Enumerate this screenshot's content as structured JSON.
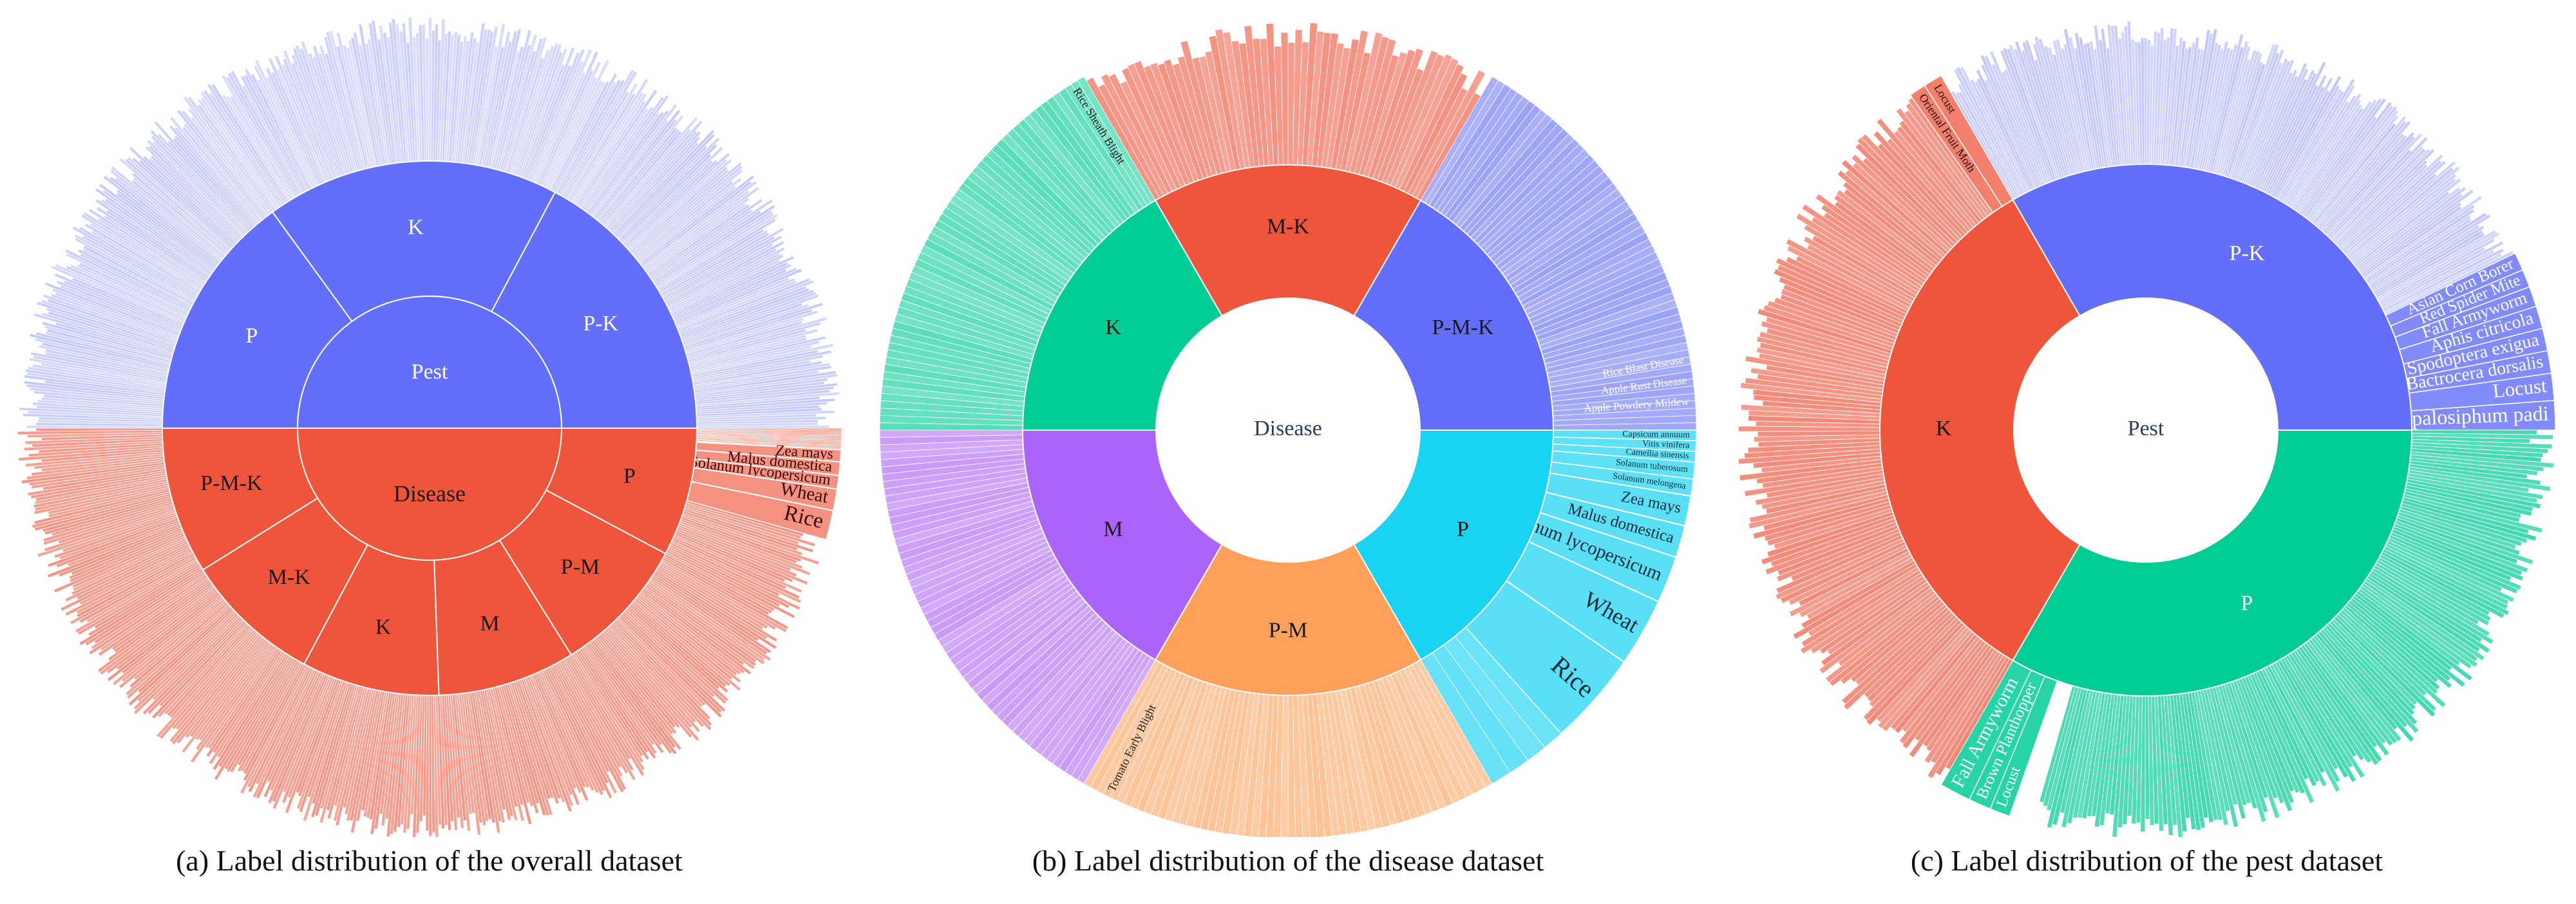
{
  "captions": {
    "a": "(a) Label distribution of the overall dataset",
    "b": "(b) Label distribution of the disease dataset",
    "c": "(c) Label distribution of the pest dataset"
  },
  "colors": {
    "pest_blue": "#636efa",
    "disease_red": "#ef553b",
    "teal": "#00cc96",
    "purple": "#ab63fa",
    "orange": "#ffa15a",
    "cyan": "#19d3f3"
  },
  "chart_data": [
    {
      "type": "sunburst",
      "id": "overall",
      "center_labels": [
        "Pest",
        "Disease"
      ],
      "rings": {
        "inner": [
          {
            "label": "Pest",
            "value": 50,
            "color": "#636efa"
          },
          {
            "label": "Disease",
            "value": 50,
            "color": "#ef553b"
          }
        ],
        "middle": [
          {
            "label": "P-K",
            "parent": "Pest",
            "value": 17,
            "color": "#636efa"
          },
          {
            "label": "K",
            "parent": "Pest",
            "value": 16,
            "color": "#636efa"
          },
          {
            "label": "P",
            "parent": "Pest",
            "value": 17,
            "color": "#636efa"
          },
          {
            "label": "P-M-K",
            "parent": "Disease",
            "value": 10,
            "color": "#ef553b"
          },
          {
            "label": "M-K",
            "parent": "Disease",
            "value": 8,
            "color": "#ef553b"
          },
          {
            "label": "K",
            "parent": "Disease",
            "value": 8,
            "color": "#ef553b"
          },
          {
            "label": "M",
            "parent": "Disease",
            "value": 8,
            "color": "#ef553b"
          },
          {
            "label": "P-M",
            "parent": "Disease",
            "value": 8,
            "color": "#ef553b"
          },
          {
            "label": "P",
            "parent": "Disease",
            "value": 8,
            "color": "#ef553b"
          }
        ],
        "outer_labels": [
          {
            "label": "Rice",
            "parent": "P",
            "value": 2.2
          },
          {
            "label": "Wheat",
            "parent": "P",
            "value": 1.6
          },
          {
            "label": "Solanum lycopersicum",
            "parent": "P",
            "value": 1.0
          },
          {
            "label": "Malus domestica",
            "parent": "P",
            "value": 1.0
          },
          {
            "label": "Zea mays",
            "parent": "P",
            "value": 0.9
          }
        ]
      }
    },
    {
      "type": "sunburst",
      "id": "disease",
      "center_labels": [
        "Disease"
      ],
      "rings": {
        "middle": [
          {
            "label": "P-M-K",
            "value": 17,
            "color": "#636efa"
          },
          {
            "label": "M-K",
            "value": 17,
            "color": "#ef553b"
          },
          {
            "label": "K",
            "value": 17,
            "color": "#00cc96"
          },
          {
            "label": "M",
            "value": 17,
            "color": "#ab63fa"
          },
          {
            "label": "P-M",
            "value": 16,
            "color": "#ffa15a"
          },
          {
            "label": "P",
            "value": 16,
            "color": "#19d3f3"
          }
        ],
        "outer_labels": [
          {
            "label": "Rice",
            "parent": "P",
            "value": 4.4
          },
          {
            "label": "Wheat",
            "parent": "P",
            "value": 3.2
          },
          {
            "label": "Solanum lycopersicum",
            "parent": "P",
            "value": 2.2
          },
          {
            "label": "Malus domestica",
            "parent": "P",
            "value": 1.5
          },
          {
            "label": "Zea mays",
            "parent": "P",
            "value": 1.4
          },
          {
            "label": "Solanum melongena",
            "parent": "P",
            "value": 0.8
          },
          {
            "label": "Solanum tuberosum",
            "parent": "P",
            "value": 0.8
          },
          {
            "label": "Camellia sinensis",
            "parent": "P",
            "value": 0.5
          },
          {
            "label": "Vitis vinifera",
            "parent": "P",
            "value": 0.5
          },
          {
            "label": "Capsicum annuum",
            "parent": "P",
            "value": 0.5
          },
          {
            "label": "Apple Powdery Mildew",
            "parent": "P-M-K",
            "value": 0.6
          },
          {
            "label": "Apple Rust Disease",
            "parent": "P-M-K",
            "value": 0.6
          },
          {
            "label": "Rice Blast Disease",
            "parent": "P-M-K",
            "value": 0.6
          },
          {
            "label": "Rice Sheath Blight",
            "parent": "K",
            "value": 0.9
          },
          {
            "label": "Tomato Early Blight",
            "parent": "P-M",
            "value": 0.9
          }
        ]
      }
    },
    {
      "type": "sunburst",
      "id": "pest",
      "center_labels": [
        "Pest"
      ],
      "rings": {
        "middle": [
          {
            "label": "P-K",
            "value": 34,
            "color": "#636efa"
          },
          {
            "label": "P",
            "value": 34,
            "color": "#00cc96"
          },
          {
            "label": "K",
            "value": 32,
            "color": "#ef553b"
          }
        ],
        "outer_labels": [
          {
            "label": "Rhopalosiphum padi",
            "parent": "P-K",
            "value": 1.3
          },
          {
            "label": "Locust",
            "parent": "P-K",
            "value": 1.2
          },
          {
            "label": "Bactrocera dorsalis",
            "parent": "P-K",
            "value": 1.0
          },
          {
            "label": "Spodoptera exigua",
            "parent": "P-K",
            "value": 1.0
          },
          {
            "label": "Aphis citricola",
            "parent": "P-K",
            "value": 1.0
          },
          {
            "label": "Fall Armyworm",
            "parent": "P-K",
            "value": 0.9
          },
          {
            "label": "Red Spider Mite",
            "parent": "P-K",
            "value": 0.8
          },
          {
            "label": "Asian Corn Borer",
            "parent": "P-K",
            "value": 0.8
          },
          {
            "label": "Fall Armyworm",
            "parent": "P",
            "value": 1.4
          },
          {
            "label": "Brown Planthopper",
            "parent": "P",
            "value": 1.0
          },
          {
            "label": "Locust",
            "parent": "P",
            "value": 0.9
          },
          {
            "label": "Locust",
            "parent": "K",
            "value": 0.9
          },
          {
            "label": "Oriental Fruit Moth",
            "parent": "K",
            "value": 0.8
          }
        ]
      }
    }
  ]
}
